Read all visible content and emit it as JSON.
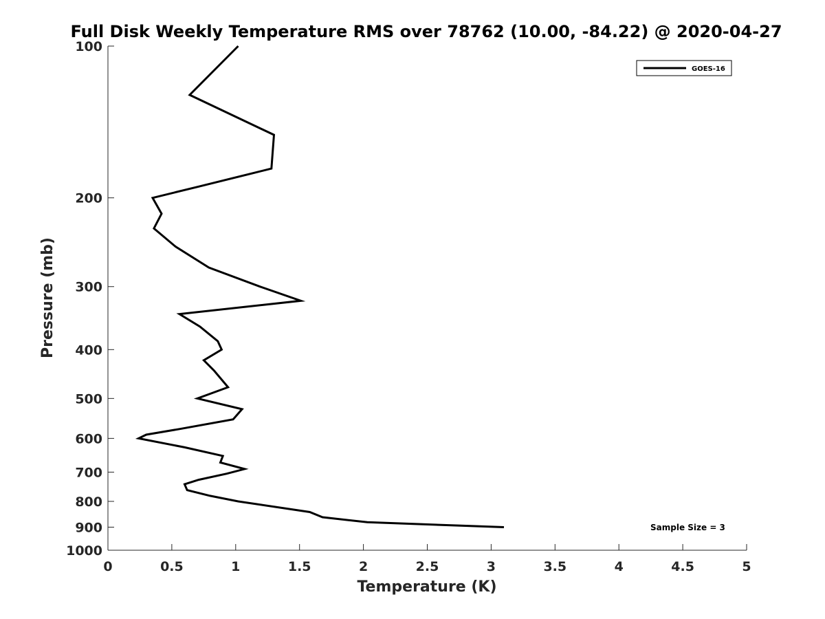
{
  "chart_data": {
    "type": "line",
    "title": "Full Disk Weekly Temperature RMS over 78762 (10.00, -84.22) @ 2020-04-27",
    "xlabel": "Temperature (K)",
    "ylabel": "Pressure (mb)",
    "xlim": [
      0,
      5
    ],
    "ylim": [
      100,
      1000
    ],
    "y_scale": "log",
    "y_reversed": true,
    "grid": false,
    "legend_position": "top-right",
    "x_ticks": [
      0,
      0.5,
      1,
      1.5,
      2,
      2.5,
      3,
      3.5,
      4,
      4.5,
      5
    ],
    "x_tick_labels": [
      "0",
      "0.5",
      "1",
      "1.5",
      "2",
      "2.5",
      "3",
      "3.5",
      "4",
      "4.5",
      "5"
    ],
    "y_ticks": [
      100,
      200,
      300,
      400,
      500,
      600,
      700,
      800,
      900,
      1000
    ],
    "y_tick_labels": [
      "100",
      "200",
      "300",
      "400",
      "500",
      "600",
      "700",
      "800",
      "900",
      "1000"
    ],
    "series": [
      {
        "name": "GOES-16",
        "color": "#000000",
        "points": [
          {
            "x": 1.02,
            "p": 100
          },
          {
            "x": 0.64,
            "p": 125
          },
          {
            "x": 1.3,
            "p": 150
          },
          {
            "x": 1.28,
            "p": 175
          },
          {
            "x": 0.71,
            "p": 190
          },
          {
            "x": 0.35,
            "p": 200
          },
          {
            "x": 0.42,
            "p": 215
          },
          {
            "x": 0.36,
            "p": 230
          },
          {
            "x": 0.53,
            "p": 250
          },
          {
            "x": 0.79,
            "p": 275
          },
          {
            "x": 1.19,
            "p": 300
          },
          {
            "x": 1.51,
            "p": 320
          },
          {
            "x": 0.56,
            "p": 340
          },
          {
            "x": 0.72,
            "p": 360
          },
          {
            "x": 0.86,
            "p": 385
          },
          {
            "x": 0.89,
            "p": 400
          },
          {
            "x": 0.75,
            "p": 420
          },
          {
            "x": 0.83,
            "p": 440
          },
          {
            "x": 0.94,
            "p": 475
          },
          {
            "x": 0.7,
            "p": 500
          },
          {
            "x": 1.05,
            "p": 525
          },
          {
            "x": 0.98,
            "p": 550
          },
          {
            "x": 0.56,
            "p": 575
          },
          {
            "x": 0.3,
            "p": 590
          },
          {
            "x": 0.24,
            "p": 600
          },
          {
            "x": 0.6,
            "p": 625
          },
          {
            "x": 0.9,
            "p": 650
          },
          {
            "x": 0.88,
            "p": 670
          },
          {
            "x": 1.07,
            "p": 690
          },
          {
            "x": 0.93,
            "p": 705
          },
          {
            "x": 0.71,
            "p": 725
          },
          {
            "x": 0.6,
            "p": 740
          },
          {
            "x": 0.62,
            "p": 760
          },
          {
            "x": 0.8,
            "p": 780
          },
          {
            "x": 1.02,
            "p": 800
          },
          {
            "x": 1.58,
            "p": 840
          },
          {
            "x": 1.68,
            "p": 860
          },
          {
            "x": 2.03,
            "p": 880
          },
          {
            "x": 3.1,
            "p": 900
          }
        ]
      }
    ],
    "annotations": [
      {
        "text": "Sample Size = 3",
        "position": "bottom-right"
      }
    ]
  }
}
